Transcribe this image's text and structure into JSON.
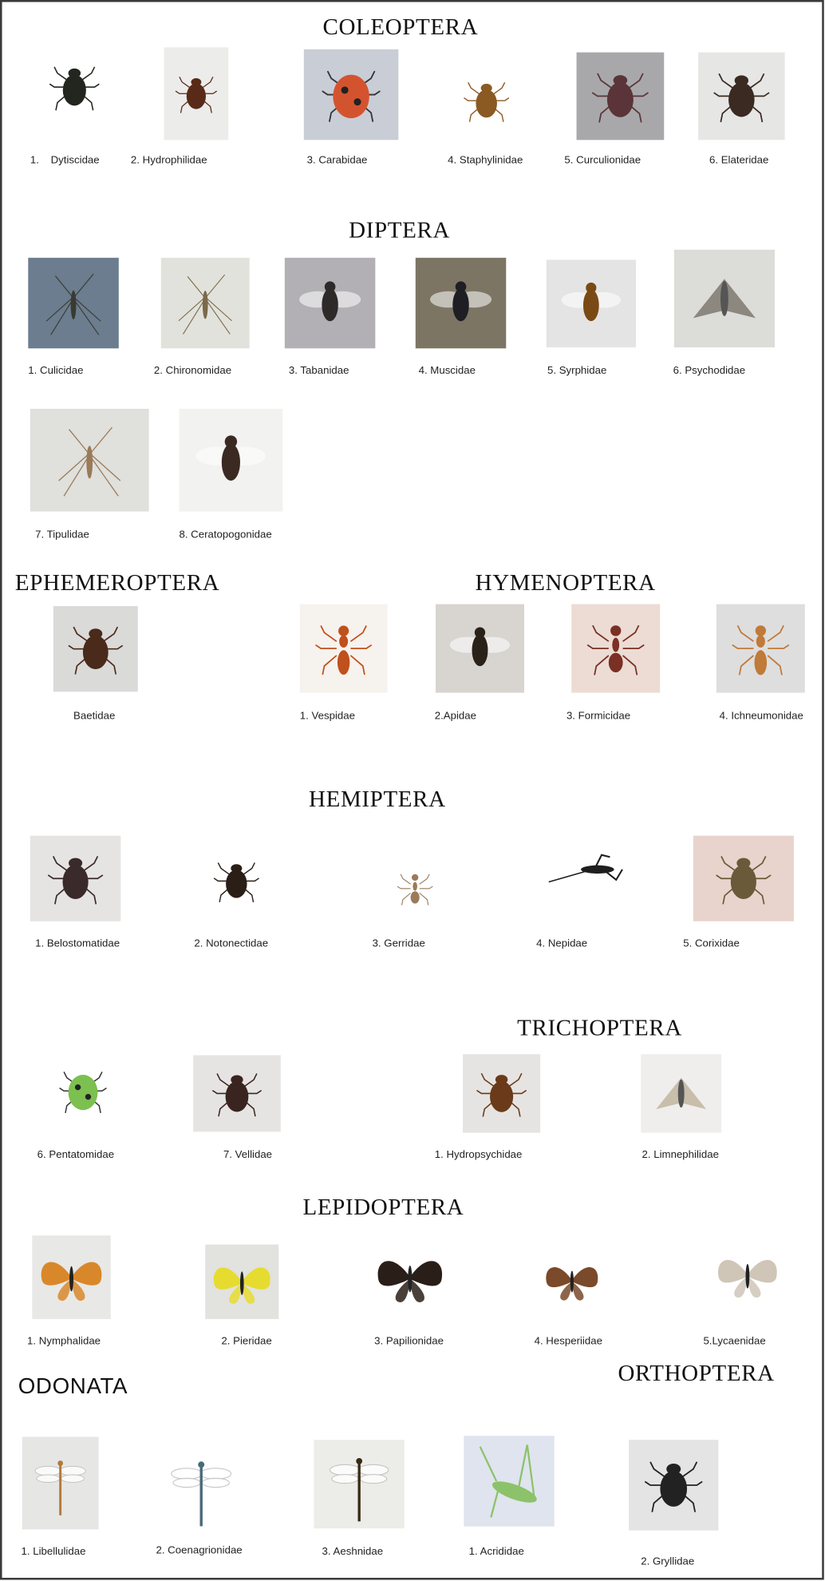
{
  "orders": {
    "coleoptera": {
      "title": "COLEOPTERA",
      "families": [
        {
          "label": "1.    Dytiscidae",
          "bg": "#ffffff",
          "body": "#23261f",
          "kind": "beetle"
        },
        {
          "label": "2. Hydrophilidae",
          "bg": "#ececea",
          "body": "#5a2a18",
          "kind": "beetle"
        },
        {
          "label": "3. Carabidae",
          "bg": "#c9cdd6",
          "body": "#d4532f",
          "kind": "ladybird"
        },
        {
          "label": "4. Staphylinidae",
          "bg": "#ffffff",
          "body": "#8a5a22",
          "kind": "beetle"
        },
        {
          "label": "5. Curculionidae",
          "bg": "#a8a8aa",
          "body": "#5a3438",
          "kind": "beetle"
        },
        {
          "label": "6. Elateridae",
          "bg": "#e6e6e4",
          "body": "#3a2a22",
          "kind": "beetle"
        }
      ]
    },
    "diptera": {
      "title": "DIPTERA",
      "families": [
        {
          "label": "1. Culicidae",
          "bg": "#6b7d8e",
          "body": "#3a3a32",
          "kind": "mosquito"
        },
        {
          "label": "2. Chironomidae",
          "bg": "#e2e2dc",
          "body": "#7a6a4a",
          "kind": "mosquito"
        },
        {
          "label": "3. Tabanidae",
          "bg": "#b2b0b4",
          "body": "#2e2a2a",
          "kind": "fly"
        },
        {
          "label": "4. Muscidae",
          "bg": "#7d7564",
          "body": "#1e1e24",
          "kind": "fly"
        },
        {
          "label": "5. Syrphidae",
          "bg": "#e4e4e4",
          "body": "#7a4a14",
          "kind": "fly"
        },
        {
          "label": "6. Psychodidae",
          "bg": "#dcdcd8",
          "body": "#6a625a",
          "kind": "moth"
        },
        {
          "label": "7. Tipulidae",
          "bg": "#e0e0dc",
          "body": "#9a7a58",
          "kind": "mosquito"
        },
        {
          "label": "8. Ceratopogonidae",
          "bg": "#f2f2f0",
          "body": "#3a2a22",
          "kind": "fly"
        }
      ]
    },
    "ephemeroptera": {
      "title": "EPHEMEROPTERA",
      "families": [
        {
          "label": "Baetidae",
          "bg": "#dadad8",
          "body": "#4a2a1a",
          "kind": "beetle"
        }
      ]
    },
    "hymenoptera": {
      "title": "HYMENOPTERA",
      "families": [
        {
          "label": "1. Vespidae",
          "bg": "#f6f2ee",
          "body": "#c0501c",
          "kind": "wasp"
        },
        {
          "label": "2.Apidae",
          "bg": "#d8d4d0",
          "body": "#2a2218",
          "kind": "fly"
        },
        {
          "label": "3. Formicidae",
          "bg": "#ecdcd4",
          "body": "#7a3024",
          "kind": "ant"
        },
        {
          "label": "4. Ichneumonidae",
          "bg": "#dedede",
          "body": "#c07a3a",
          "kind": "wasp"
        }
      ]
    },
    "hemiptera": {
      "title": "HEMIPTERA",
      "families": [
        {
          "label": "1. Belostomatidae",
          "bg": "#e6e4e2",
          "body": "#3a2a2a",
          "kind": "beetle"
        },
        {
          "label": "2. Notonectidae",
          "bg": "#ffffff",
          "body": "#2a1e16",
          "kind": "beetle"
        },
        {
          "label": "3. Gerridae",
          "bg": "#ffffff",
          "body": "#9a7a5a",
          "kind": "ant"
        },
        {
          "label": "4. Nepidae",
          "bg": "#ffffff",
          "body": "#1e1e1e",
          "kind": "nepa"
        },
        {
          "label": "5. Corixidae",
          "bg": "#e8d4cc",
          "body": "#6a5a3a",
          "kind": "beetle"
        },
        {
          "label": "6. Pentatomidae",
          "bg": "#ffffff",
          "body": "#7cc050",
          "kind": "ladybird"
        },
        {
          "label": "7. Vellidae",
          "bg": "#e6e4e2",
          "body": "#3a2420",
          "kind": "beetle"
        }
      ]
    },
    "trichoptera": {
      "title": "TRICHOPTERA",
      "families": [
        {
          "label": "1. Hydropsychidae",
          "bg": "#e6e4e2",
          "body": "#6a3a1a",
          "kind": "beetle"
        },
        {
          "label": "2. Limnephilidae",
          "bg": "#f0eeec",
          "body": "#b8a890",
          "kind": "moth"
        }
      ]
    },
    "lepidoptera": {
      "title": "LEPIDOPTERA",
      "families": [
        {
          "label": "1. Nymphalidae",
          "bg": "#e8e8e6",
          "body": "#d8882a",
          "kind": "butterfly"
        },
        {
          "label": "2. Pieridae",
          "bg": "#e2e2de",
          "body": "#e6dc30",
          "kind": "butterfly"
        },
        {
          "label": "3. Papilionidae",
          "bg": "#ffffff",
          "body": "#2a1e18",
          "kind": "butterfly"
        },
        {
          "label": "4. Hesperiidae",
          "bg": "#ffffff",
          "body": "#7a4a2a",
          "kind": "butterfly"
        },
        {
          "label": "5.Lycaenidae",
          "bg": "#ffffff",
          "body": "#cfc6b8",
          "kind": "butterfly"
        }
      ]
    },
    "odonata": {
      "title": "ODONATA",
      "families": [
        {
          "label": "1. Libellulidae",
          "bg": "#e6e6e4",
          "body": "#b07a3a",
          "kind": "dragonfly"
        },
        {
          "label": "2. Coenagrionidae",
          "bg": "#ffffff",
          "body": "#4a6a7a",
          "kind": "dragonfly"
        },
        {
          "label": "3. Aeshnidae",
          "bg": "#ecece8",
          "body": "#3a2a14",
          "kind": "dragonfly"
        }
      ]
    },
    "orthoptera": {
      "title": "ORTHOPTERA",
      "families": [
        {
          "label": "1. Acrididae",
          "bg": "#dfe4ee",
          "body": "#8cc26a",
          "kind": "grasshopper"
        },
        {
          "label": "2. Gryllidae",
          "bg": "#e4e4e4",
          "body": "#222222",
          "kind": "beetle"
        }
      ]
    }
  }
}
